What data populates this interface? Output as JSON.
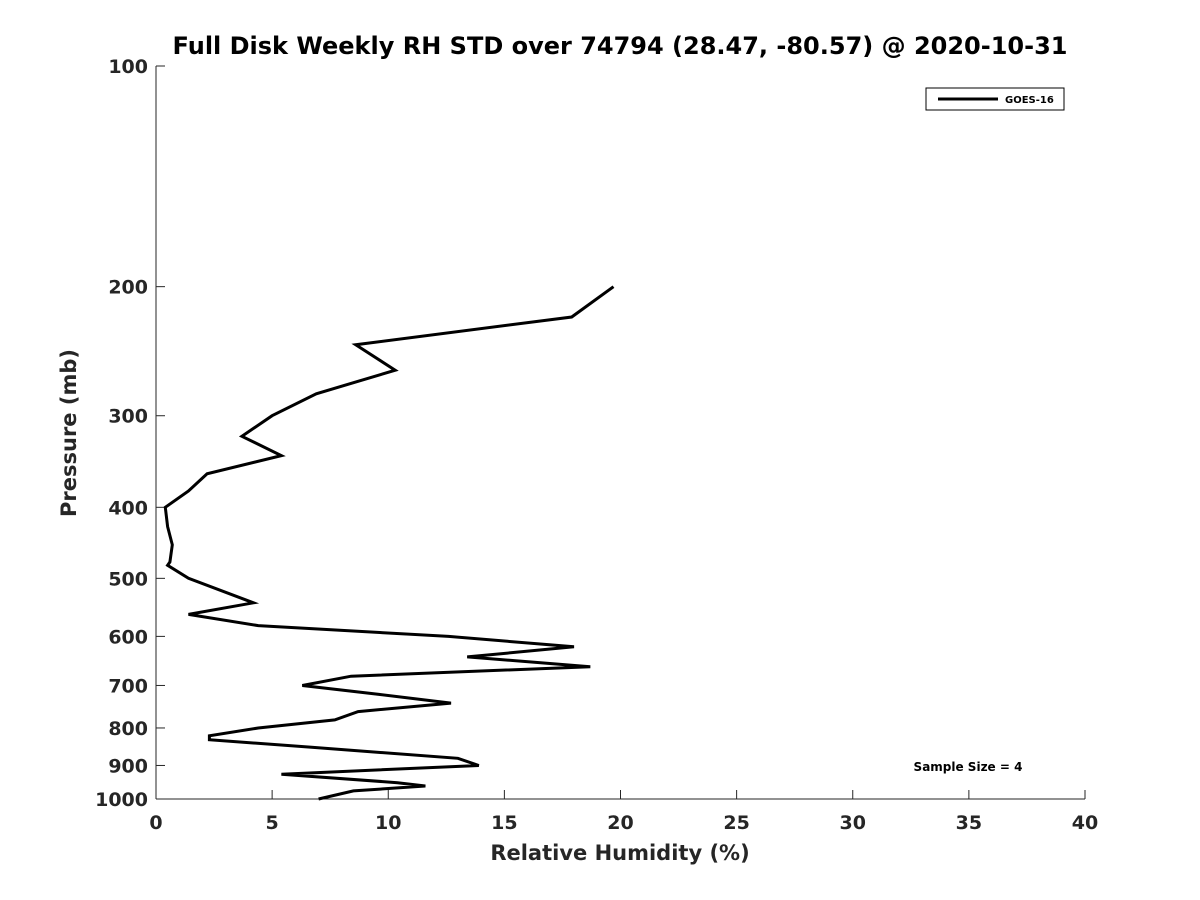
{
  "chart_data": {
    "type": "line",
    "title": "Full Disk Weekly RH STD over 74794 (28.47, -80.57) @ 2020-10-31",
    "xlabel": "Relative Humidity (%)",
    "ylabel": "Pressure (mb)",
    "xlim": [
      0,
      40
    ],
    "ylim": [
      100,
      1000
    ],
    "y_scale": "log",
    "y_reversed": true,
    "x_ticks": [
      "0",
      "5",
      "10",
      "15",
      "20",
      "25",
      "30",
      "35",
      "40"
    ],
    "y_ticks": [
      "100",
      "200",
      "300",
      "400",
      "500",
      "600",
      "700",
      "800",
      "900",
      "1000"
    ],
    "grid": false,
    "legend_position": "top-right",
    "annotation": "Sample Size = 4",
    "series": [
      {
        "name": "GOES-16",
        "color": "#000000",
        "points": [
          {
            "x": 19.7,
            "p": 200
          },
          {
            "x": 17.9,
            "p": 220
          },
          {
            "x": 8.6,
            "p": 240
          },
          {
            "x": 10.3,
            "p": 260
          },
          {
            "x": 6.9,
            "p": 280
          },
          {
            "x": 5.0,
            "p": 300
          },
          {
            "x": 3.7,
            "p": 320
          },
          {
            "x": 5.4,
            "p": 340
          },
          {
            "x": 2.2,
            "p": 360
          },
          {
            "x": 1.4,
            "p": 380
          },
          {
            "x": 0.4,
            "p": 400
          },
          {
            "x": 0.5,
            "p": 425
          },
          {
            "x": 0.7,
            "p": 450
          },
          {
            "x": 0.6,
            "p": 475
          },
          {
            "x": 0.5,
            "p": 480
          },
          {
            "x": 1.4,
            "p": 500
          },
          {
            "x": 4.2,
            "p": 540
          },
          {
            "x": 1.4,
            "p": 560
          },
          {
            "x": 4.4,
            "p": 580
          },
          {
            "x": 12.6,
            "p": 600
          },
          {
            "x": 18.0,
            "p": 620
          },
          {
            "x": 13.4,
            "p": 640
          },
          {
            "x": 18.7,
            "p": 660
          },
          {
            "x": 8.4,
            "p": 680
          },
          {
            "x": 6.3,
            "p": 700
          },
          {
            "x": 9.6,
            "p": 720
          },
          {
            "x": 12.7,
            "p": 740
          },
          {
            "x": 8.7,
            "p": 760
          },
          {
            "x": 7.7,
            "p": 780
          },
          {
            "x": 4.4,
            "p": 800
          },
          {
            "x": 2.3,
            "p": 820
          },
          {
            "x": 2.3,
            "p": 830
          },
          {
            "x": 6.7,
            "p": 850
          },
          {
            "x": 13.0,
            "p": 880
          },
          {
            "x": 13.9,
            "p": 900
          },
          {
            "x": 5.4,
            "p": 925
          },
          {
            "x": 10.4,
            "p": 950
          },
          {
            "x": 11.6,
            "p": 960
          },
          {
            "x": 8.5,
            "p": 975
          },
          {
            "x": 7.0,
            "p": 1000
          }
        ]
      }
    ]
  }
}
